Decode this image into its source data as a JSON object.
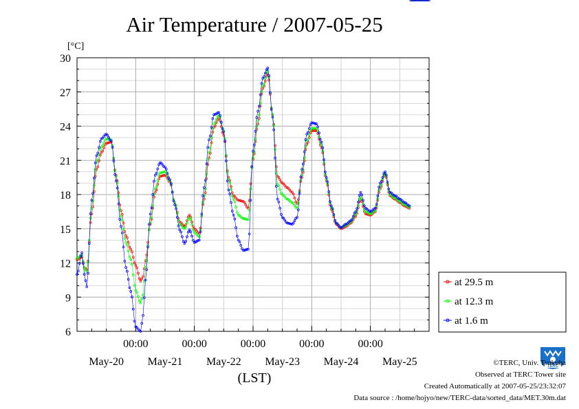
{
  "chart_data": {
    "type": "line",
    "title": "Air Temperature / 2007-05-25",
    "ylabel": "[°C]",
    "xlabel": "(LST)",
    "ylim": [
      6,
      30
    ],
    "yticks": [
      "6",
      "9",
      "12",
      "15",
      "18",
      "21",
      "24",
      "27",
      "30"
    ],
    "xlim_hours": [
      0,
      144
    ],
    "midnight_tick_label": "00:00",
    "midnight_ticks_hours": [
      24,
      48,
      72,
      96,
      120
    ],
    "day_labels": [
      "May-20",
      "May-21",
      "May-22",
      "May-23",
      "May-24",
      "May-25"
    ],
    "grid": true,
    "legend_position": "right",
    "series": [
      {
        "name": "at 29.5 m",
        "color": "#ff0000",
        "knots_hours": [
          0,
          2,
          3,
          4,
          6,
          8,
          10,
          12,
          14,
          16,
          18,
          20,
          22,
          24,
          26,
          27,
          28,
          30,
          32,
          34,
          36,
          38,
          40,
          42,
          44,
          46,
          48,
          50,
          52,
          54,
          56,
          58,
          60,
          62,
          64,
          66,
          68,
          70,
          72,
          74,
          76,
          78,
          80,
          82,
          84,
          86,
          88,
          90,
          92,
          94,
          96,
          98,
          100,
          102,
          104,
          106,
          108,
          110,
          112,
          114,
          116,
          118,
          120,
          122,
          124,
          126,
          128,
          130,
          132,
          134,
          136,
          138,
          140,
          142,
          144
        ],
        "values": [
          12.3,
          12.5,
          11.6,
          11.4,
          16.3,
          20.2,
          21.7,
          22.5,
          22.6,
          19.7,
          16.6,
          14.4,
          13.2,
          11.8,
          10.4,
          10.8,
          12.2,
          15.4,
          18.2,
          19.6,
          19.7,
          19.1,
          17.3,
          15.6,
          15.2,
          16.2,
          15.0,
          14.6,
          17.6,
          21.2,
          23.9,
          24.7,
          23.2,
          19.5,
          17.9,
          17.5,
          17.4,
          16.8,
          21.1,
          24.2,
          27.3,
          28.6,
          25.0,
          19.6,
          19.0,
          18.6,
          18.2,
          17.2,
          19.5,
          22.4,
          23.6,
          23.6,
          22.1,
          19.2,
          16.7,
          15.4,
          15.0,
          15.2,
          15.5,
          16.1,
          17.6,
          16.3,
          16.2,
          16.5,
          18.5,
          19.8,
          17.9,
          17.6,
          17.3,
          17.0,
          16.8
        ]
      },
      {
        "name": "at 12.3 m",
        "color": "#00ff00",
        "knots_hours": [
          0,
          2,
          3,
          4,
          6,
          8,
          10,
          12,
          14,
          16,
          18,
          20,
          22,
          24,
          26,
          27,
          28,
          30,
          32,
          34,
          36,
          38,
          40,
          42,
          44,
          46,
          48,
          50,
          52,
          54,
          56,
          58,
          60,
          62,
          64,
          66,
          68,
          70,
          72,
          74,
          76,
          78,
          80,
          82,
          84,
          86,
          88,
          90,
          92,
          94,
          96,
          98,
          100,
          102,
          104,
          106,
          108,
          110,
          112,
          114,
          116,
          118,
          120,
          122,
          124,
          126,
          128,
          130,
          132,
          134,
          136,
          138,
          140,
          142,
          144
        ],
        "values": [
          12.4,
          12.7,
          11.6,
          11.2,
          16.8,
          20.8,
          22.2,
          22.9,
          22.8,
          19.6,
          16.1,
          13.8,
          12.3,
          9.6,
          8.5,
          9.2,
          11.6,
          15.5,
          18.5,
          19.9,
          20.0,
          19.2,
          17.3,
          15.4,
          15.0,
          16.0,
          14.7,
          14.3,
          17.9,
          21.7,
          24.2,
          25.0,
          23.6,
          19.3,
          17.6,
          16.2,
          15.9,
          15.8,
          21.2,
          24.5,
          27.5,
          28.9,
          25.0,
          18.9,
          18.0,
          17.6,
          17.3,
          16.8,
          19.7,
          22.7,
          23.8,
          23.8,
          22.3,
          19.3,
          16.9,
          15.5,
          15.1,
          15.3,
          15.6,
          16.3,
          17.8,
          16.5,
          16.3,
          16.6,
          18.7,
          19.9,
          18.0,
          17.7,
          17.4,
          17.1,
          16.9
        ]
      },
      {
        "name": "at 1.6 m",
        "color": "#0000ff",
        "knots_hours": [
          0,
          2,
          3,
          4,
          6,
          8,
          10,
          12,
          14,
          16,
          18,
          20,
          22,
          24,
          26,
          27,
          28,
          30,
          32,
          34,
          36,
          38,
          40,
          42,
          44,
          46,
          48,
          50,
          52,
          54,
          56,
          58,
          60,
          62,
          64,
          66,
          68,
          70,
          72,
          74,
          76,
          78,
          80,
          82,
          84,
          86,
          88,
          90,
          92,
          94,
          96,
          98,
          100,
          102,
          104,
          106,
          108,
          110,
          112,
          114,
          116,
          118,
          120,
          122,
          124,
          126,
          128,
          130,
          132,
          134,
          136,
          138,
          140,
          142,
          144
        ],
        "values": [
          11.0,
          12.9,
          11.0,
          9.9,
          17.5,
          21.4,
          22.9,
          23.3,
          22.7,
          19.2,
          15.2,
          11.6,
          9.5,
          6.4,
          6.0,
          7.4,
          10.5,
          16.3,
          19.7,
          20.8,
          20.4,
          19.3,
          17.1,
          14.9,
          13.7,
          14.9,
          13.8,
          14.0,
          18.6,
          22.8,
          25.0,
          25.2,
          23.5,
          18.4,
          16.2,
          14.0,
          13.1,
          13.2,
          21.8,
          25.3,
          28.2,
          29.1,
          24.8,
          17.6,
          16.0,
          15.5,
          15.4,
          16.0,
          20.2,
          23.3,
          24.3,
          24.2,
          22.6,
          19.5,
          17.0,
          15.5,
          15.1,
          15.4,
          15.7,
          16.5,
          18.2,
          16.8,
          16.5,
          16.8,
          19.0,
          20.0,
          18.2,
          17.9,
          17.6,
          17.3,
          17.0
        ]
      }
    ]
  },
  "footer": {
    "line1": "©TERC, Univ. Tsukuba",
    "line2": "Observed at TERC Tower site",
    "line3": "Created Automatically at 2007-05-25/23:32:07",
    "line4": "Data source : /home/hojyo/new/TERC-data/sorted_data/MET.30m.dat"
  },
  "logo": {
    "text": "TERC",
    "color": "#1a6fc7"
  }
}
